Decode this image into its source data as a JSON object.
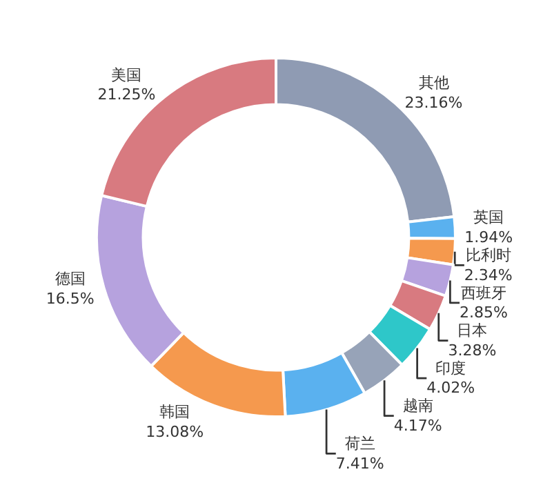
{
  "chart_data": {
    "type": "donut",
    "categories": [
      "其他",
      "英国",
      "比利时",
      "西班牙",
      "日本",
      "印度",
      "越南",
      "荷兰",
      "韩国",
      "德国",
      "美国"
    ],
    "values": [
      23.16,
      1.94,
      2.34,
      2.85,
      3.28,
      4.02,
      4.17,
      7.41,
      13.08,
      16.5,
      21.25
    ],
    "value_labels": [
      "23.16%",
      "1.94%",
      "2.34%",
      "2.85%",
      "3.28%",
      "4.02%",
      "4.17%",
      "7.41%",
      "13.08%",
      "16.5%",
      "21.25%"
    ],
    "colors": [
      "#8f9bb3",
      "#5ab1ef",
      "#f5994e",
      "#b6a2de",
      "#d87a80",
      "#2ec7c9",
      "#97a3b8",
      "#5ab1ef",
      "#f5994e",
      "#b6a2de",
      "#d87a80"
    ],
    "legend": false
  }
}
